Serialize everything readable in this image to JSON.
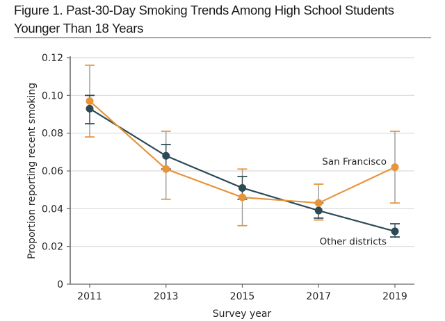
{
  "figure": {
    "title_line1": "Figure 1. Past-30-Day Smoking Trends Among High School Students",
    "title_line2": "Younger Than 18 Years"
  },
  "chart_data": {
    "type": "line",
    "title": "Figure 1. Past-30-Day Smoking Trends Among High School Students Younger Than 18 Years",
    "xlabel": "Survey year",
    "ylabel": "Proportion reporting recent smoking",
    "x": [
      2011,
      2013,
      2015,
      2017,
      2019
    ],
    "x_tick_labels": [
      "2011",
      "2013",
      "2015",
      "2017",
      "2019"
    ],
    "ylim": [
      0,
      0.12
    ],
    "y_ticks": [
      0,
      0.02,
      0.04,
      0.06,
      0.08,
      0.1,
      0.12
    ],
    "y_tick_labels": [
      "0",
      "0.02",
      "0.04",
      "0.06",
      "0.08",
      "0.10",
      "0.12"
    ],
    "grid": "horizontal",
    "legend": "direct-labels",
    "series": [
      {
        "name": "San Francisco",
        "color": "#E8943A",
        "values": [
          0.097,
          0.061,
          0.046,
          0.043,
          0.062
        ],
        "ci_upper": [
          0.116,
          0.081,
          0.061,
          0.053,
          0.081
        ],
        "ci_lower": [
          0.078,
          0.045,
          0.031,
          0.034,
          0.043
        ]
      },
      {
        "name": "Other districts",
        "color": "#2B4A55",
        "values": [
          0.093,
          0.068,
          0.051,
          0.039,
          0.028
        ],
        "ci_upper": [
          0.1,
          0.074,
          0.057,
          0.043,
          0.032
        ],
        "ci_lower": [
          0.085,
          0.061,
          0.045,
          0.035,
          0.025
        ]
      }
    ]
  }
}
